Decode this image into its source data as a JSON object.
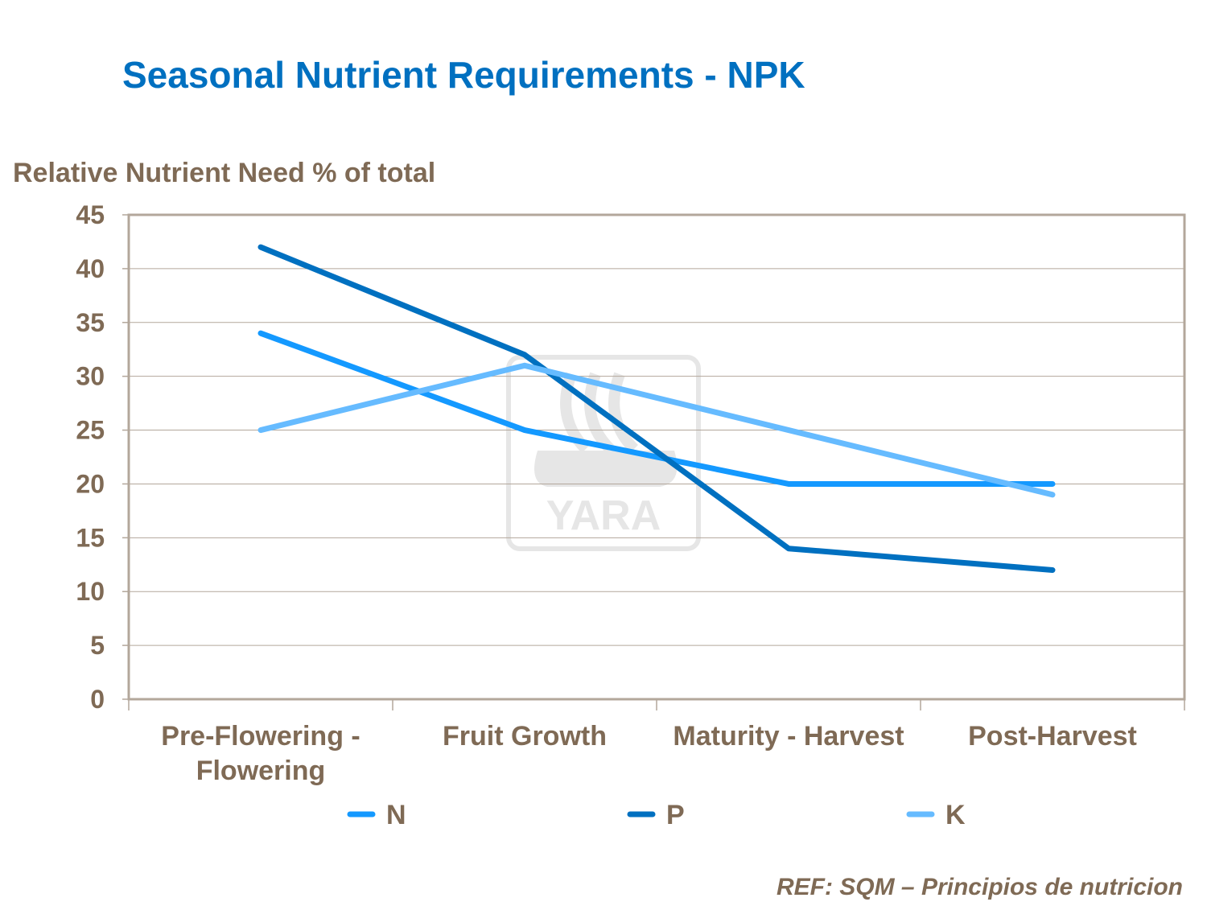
{
  "title": "Seasonal Nutrient Requirements - NPK",
  "reference": "REF: SQM – Principios de nutricion",
  "watermark": {
    "logo_text": "YARA",
    "color": "#E6E6E6"
  },
  "chart_data": {
    "type": "line",
    "title": "Seasonal Nutrient Requirements - NPK",
    "ylabel": "Relative Nutrient Need % of total",
    "xlabel": "",
    "categories": [
      [
        "Pre-Flowering -",
        "Flowering"
      ],
      [
        "Fruit Growth"
      ],
      [
        "Maturity - Harvest"
      ],
      [
        "Post-Harvest"
      ]
    ],
    "ylim": [
      0,
      45
    ],
    "yticks": [
      0,
      5,
      10,
      15,
      20,
      25,
      30,
      35,
      40,
      45
    ],
    "grid": true,
    "legend_position": "bottom",
    "series": [
      {
        "name": "N",
        "color": "#1499FF",
        "values": [
          34,
          25,
          20,
          20
        ]
      },
      {
        "name": "P",
        "color": "#0070C0",
        "values": [
          42,
          32,
          14,
          12
        ]
      },
      {
        "name": "K",
        "color": "#66BBFF",
        "values": [
          25,
          31,
          25,
          19
        ]
      }
    ],
    "text_color": "#7F6A55",
    "gridline_color": "#B3A79B"
  }
}
